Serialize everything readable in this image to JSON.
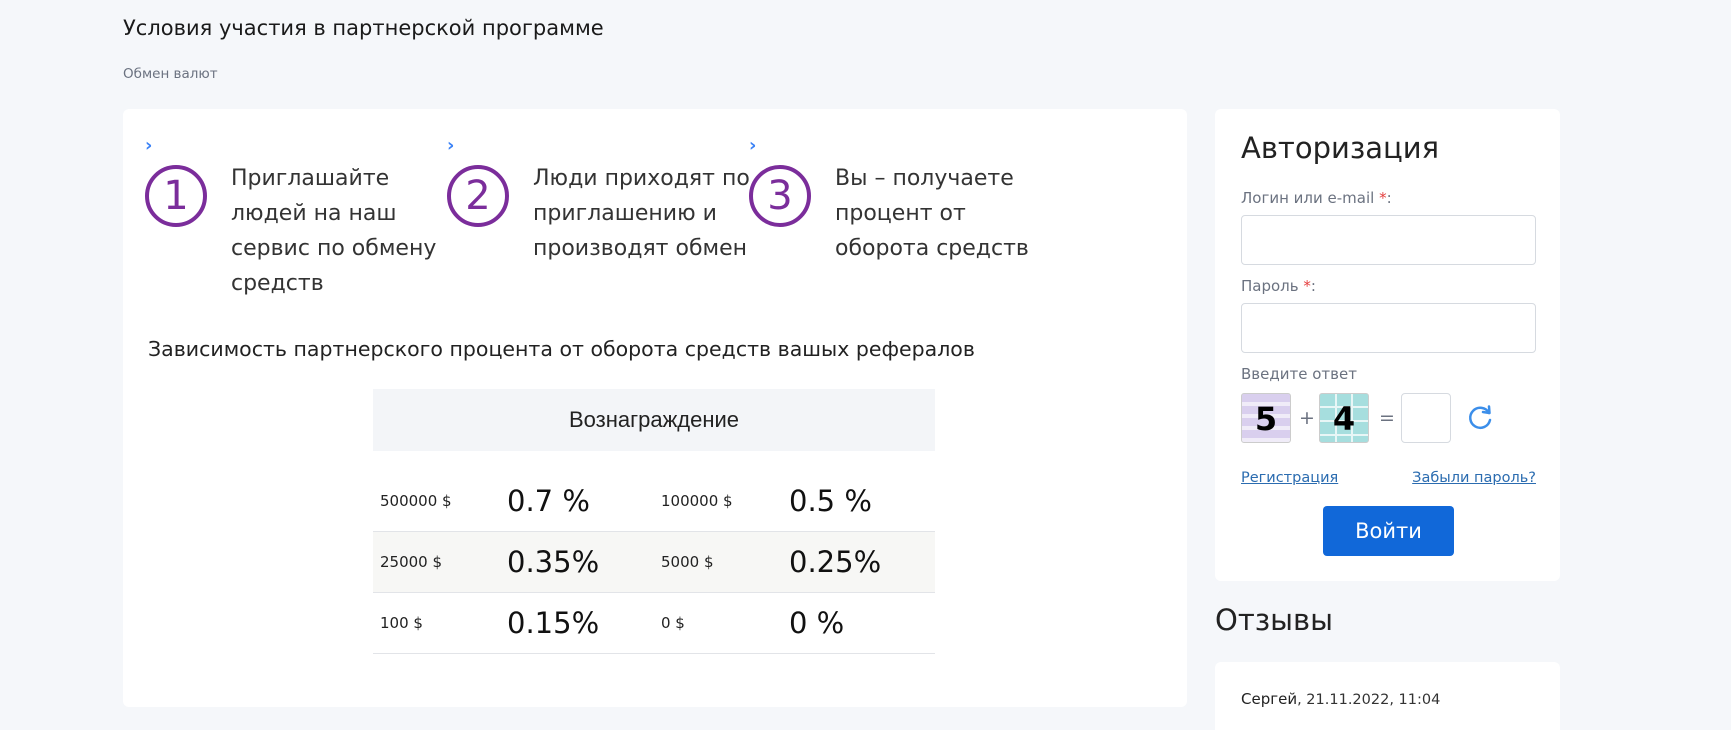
{
  "page": {
    "title": "Условия участия в партнерской программе",
    "breadcrumb": "Обмен валют"
  },
  "steps": [
    {
      "number": "1",
      "text": "Приглашайте людей на наш сервис по обмену средств"
    },
    {
      "number": "2",
      "text": "Люди приходят по приглашению и производят обмен"
    },
    {
      "number": "3",
      "text": "Вы – получаете процент от оборота средств"
    }
  ],
  "dependency_title": "Зависимость партнерского процента  от оборота средств вашых рефералов",
  "reward_table": {
    "header": "Вознаграждение",
    "rows": [
      {
        "amount1": "500000 $",
        "percent1": "0.7 %",
        "amount2": "100000 $",
        "percent2": "0.5 %"
      },
      {
        "amount1": "25000 $",
        "percent1": "0.35%",
        "amount2": "5000 $",
        "percent2": "0.25%"
      },
      {
        "amount1": "100 $",
        "percent1": "0.15%",
        "amount2": "0 $",
        "percent2": "0 %"
      }
    ]
  },
  "auth": {
    "title": "Авторизация",
    "login_label": "Логин или e-mail",
    "password_label": "Пароль",
    "required_mark": "*",
    "colon": ":",
    "captcha_label": "Введите ответ",
    "captcha_a": "5",
    "captcha_plus": "+",
    "captcha_b": "4",
    "captcha_equals": "=",
    "register_link": "Регистрация",
    "forgot_link": "Забыли пароль?",
    "login_button": "Войти"
  },
  "reviews": {
    "title": "Отзывы",
    "items": [
      {
        "author": "Сергей",
        "date": ", 21.11.2022, 11:04"
      }
    ]
  },
  "colors": {
    "accent": "#7b2d9b",
    "button": "#1168d9",
    "link": "#2b6cb0",
    "required": "#e53e3e"
  }
}
